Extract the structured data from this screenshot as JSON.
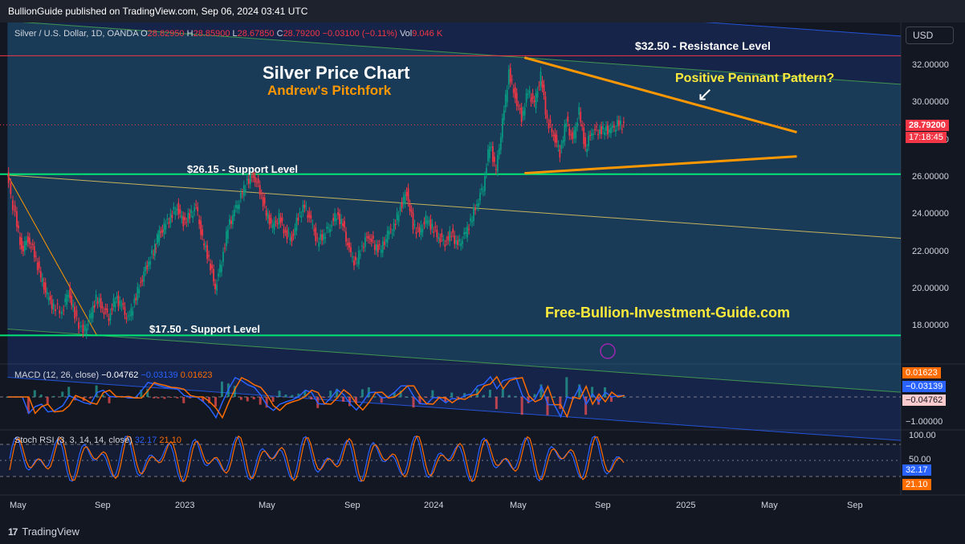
{
  "header": {
    "published_text": "BullionGuide published on TradingView.com, Sep 06, 2024 03:41 UTC",
    "currency_button": "USD"
  },
  "legend": {
    "symbol": "Silver / U.S. Dollar, 1D, OANDA",
    "open_label": "O",
    "open": "28.82950",
    "high_label": "H",
    "high": "28.85900",
    "low_label": "L",
    "low": "28.67850",
    "close_label": "C",
    "close": "28.79200",
    "change": "−0.03100 (−0.11%)",
    "vol_label": "Vol",
    "vol": "9.046 K"
  },
  "annotations": {
    "title": "Silver Price Chart",
    "subtitle": "Andrew's Pitchfork",
    "resistance": "$32.50 - Resistance Level",
    "support_high": "$26.15 - Support Level",
    "support_low": "$17.50 - Support Level",
    "pattern": "Positive Pennant Pattern?",
    "arrow": "↙",
    "website": "Free-Bullion-Investment-Guide.com"
  },
  "price_tags": {
    "last": "28.79200",
    "countdown": "17:18:45"
  },
  "macd": {
    "legend": "MACD (12, 26, close)",
    "hist": "−0.04762",
    "macd": "−0.03139",
    "signal": "0.01623",
    "axis_bottom": "−1.00000",
    "tag_signal": "0.01623",
    "tag_macd": "−0.03139",
    "tag_hist": "−0.04762"
  },
  "stoch": {
    "legend": "Stoch RSI (3, 3, 14, 14, close)",
    "k": "32.17",
    "d": "21.10",
    "axis_top": "100.00",
    "axis_mid": "50.00",
    "tag_k": "32.17",
    "tag_d": "21.10"
  },
  "footer": {
    "brand": "TradingView",
    "logo_mark": "17"
  },
  "colors": {
    "up": "#089981",
    "down": "#f23645",
    "pitchfork": "#f0d060",
    "support": "#00e676",
    "resistance": "#f23645",
    "pennant": "#ff9800",
    "macd_line": "#2962ff",
    "signal_line": "#ff6d00"
  },
  "chart_data": {
    "type": "line",
    "title": "Silver Price Chart",
    "subtitle": "Andrew's Pitchfork",
    "ylim": [
      16.9,
      33.6
    ],
    "y_ticks": [
      "32.00000",
      "30.00000",
      "28.00000",
      "26.00000",
      "24.00000",
      "22.00000",
      "20.00000",
      "18.00000"
    ],
    "x_ticks": [
      "May",
      "Sep",
      "2023",
      "May",
      "Sep",
      "2024",
      "May",
      "Sep",
      "2025",
      "May",
      "Sep"
    ],
    "x_tick_months": [
      0,
      4,
      8,
      12,
      16,
      20,
      24,
      28,
      32,
      36,
      40
    ],
    "series": [
      {
        "name": "Silver / U.S. Dollar",
        "x_months": [
          -0.1,
          0.3,
          0.6,
          0.9,
          1.2,
          1.5,
          1.8,
          2.1,
          2.5,
          2.8,
          3.1,
          3.5,
          3.8,
          4.1,
          4.4,
          4.7,
          5.0,
          5.3,
          5.6,
          5.9,
          6.2,
          6.5,
          6.8,
          7.0,
          7.3,
          7.6,
          7.9,
          8.2,
          8.5,
          8.8,
          9.1,
          9.4,
          9.7,
          10.0,
          10.3,
          10.6,
          10.9,
          11.2,
          11.5,
          11.8,
          12.1,
          12.4,
          12.7,
          13.0,
          13.3,
          13.6,
          13.9,
          14.2,
          14.5,
          14.8,
          15.1,
          15.4,
          15.7,
          16.0,
          16.3,
          16.6,
          16.9,
          17.2,
          17.5,
          17.8,
          18.1,
          18.4,
          18.7,
          19.0,
          19.3,
          19.6,
          19.9,
          20.2,
          20.5,
          20.8,
          21.1,
          21.4,
          21.7,
          22.0,
          22.3,
          22.6,
          22.9,
          23.2,
          23.5,
          23.8,
          24.1,
          24.4,
          24.7,
          25.0,
          25.3,
          25.6,
          25.9,
          26.2,
          26.5,
          26.8,
          27.1,
          27.4,
          27.7,
          28.0,
          28.3,
          28.6,
          28.9
        ],
        "y": [
          26.1,
          23.9,
          22.1,
          22.7,
          21.9,
          20.6,
          19.6,
          19.0,
          18.8,
          19.9,
          18.6,
          17.6,
          18.4,
          19.5,
          19.0,
          18.5,
          19.5,
          19.1,
          18.3,
          19.3,
          20.4,
          21.3,
          22.0,
          22.8,
          23.3,
          23.9,
          24.4,
          23.6,
          23.9,
          24.4,
          22.6,
          21.6,
          20.1,
          21.5,
          23.3,
          24.1,
          24.9,
          25.8,
          26.1,
          25.3,
          24.0,
          23.3,
          23.8,
          23.0,
          22.7,
          23.9,
          24.4,
          23.6,
          22.5,
          22.9,
          23.4,
          24.0,
          23.4,
          22.0,
          21.3,
          22.3,
          22.9,
          22.3,
          22.1,
          22.9,
          23.3,
          24.4,
          25.2,
          23.4,
          23.0,
          23.7,
          23.3,
          22.8,
          22.5,
          23.0,
          22.3,
          22.8,
          23.6,
          24.6,
          25.5,
          27.8,
          26.3,
          28.9,
          31.6,
          30.3,
          29.2,
          30.6,
          29.9,
          31.4,
          29.0,
          28.3,
          27.3,
          29.0,
          27.9,
          29.5,
          27.5,
          28.5,
          28.5,
          28.5,
          28.5,
          28.8,
          28.8
        ]
      }
    ],
    "horizontal_levels": [
      {
        "value": 32.5,
        "label": "$32.50 - Resistance Level"
      },
      {
        "value": 26.15,
        "label": "$26.15 - Support Level"
      },
      {
        "value": 17.5,
        "label": "$17.50 - Support Level"
      }
    ],
    "last_price": 28.792
  }
}
